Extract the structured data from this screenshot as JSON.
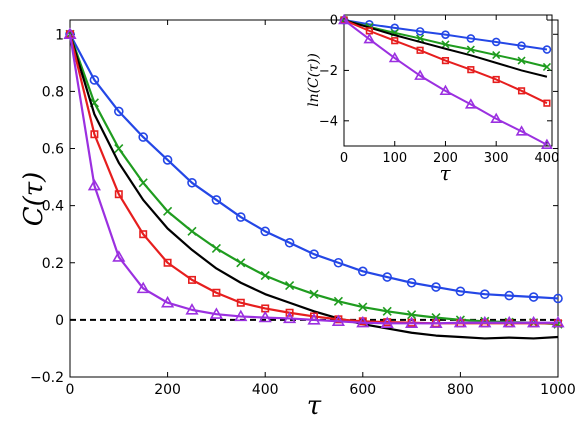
{
  "chart_data": [
    {
      "type": "line",
      "title": "",
      "xlabel": "τ",
      "ylabel": "C(τ)",
      "xlim": [
        0,
        1000
      ],
      "ylim": [
        -0.2,
        1.05
      ],
      "xticks": [
        0,
        200,
        400,
        600,
        800,
        1000
      ],
      "yticks": [
        -0.2,
        0,
        0.2,
        0.4,
        0.6,
        0.8,
        1
      ],
      "xtick_labels": [
        "0",
        "200",
        "400",
        "600",
        "800",
        "1000"
      ],
      "ytick_labels": [
        "−0.2",
        "0",
        "0.2",
        "0.4",
        "0.6",
        "0.8",
        "1"
      ],
      "reference_line": {
        "y": 0,
        "style": "dashed",
        "color": "#000000"
      },
      "series": [
        {
          "color": "#2447e6",
          "marker": "circle",
          "x": [
            0,
            50,
            100,
            150,
            200,
            250,
            300,
            350,
            400,
            450,
            500,
            550,
            600,
            650,
            700,
            750,
            800,
            850,
            900,
            950,
            1000
          ],
          "y": [
            1.0,
            0.84,
            0.73,
            0.64,
            0.56,
            0.48,
            0.42,
            0.36,
            0.31,
            0.27,
            0.23,
            0.2,
            0.17,
            0.15,
            0.13,
            0.115,
            0.1,
            0.09,
            0.085,
            0.08,
            0.075
          ]
        },
        {
          "color": "#1f9c1f",
          "marker": "x",
          "x": [
            0,
            50,
            100,
            150,
            200,
            250,
            300,
            350,
            400,
            450,
            500,
            550,
            600,
            650,
            700,
            750,
            800,
            850,
            900,
            950,
            1000
          ],
          "y": [
            1.0,
            0.76,
            0.6,
            0.48,
            0.38,
            0.31,
            0.25,
            0.2,
            0.155,
            0.12,
            0.09,
            0.065,
            0.045,
            0.03,
            0.018,
            0.008,
            0.0,
            -0.005,
            -0.008,
            -0.01,
            -0.015
          ]
        },
        {
          "color": "#000000",
          "marker": "none",
          "x": [
            0,
            50,
            100,
            150,
            200,
            250,
            300,
            350,
            400,
            450,
            500,
            550,
            600,
            650,
            700,
            750,
            800,
            850,
            900,
            950,
            1000
          ],
          "y": [
            1.0,
            0.72,
            0.55,
            0.42,
            0.32,
            0.245,
            0.18,
            0.13,
            0.09,
            0.06,
            0.03,
            0.005,
            -0.015,
            -0.03,
            -0.045,
            -0.055,
            -0.06,
            -0.065,
            -0.062,
            -0.065,
            -0.06
          ]
        },
        {
          "color": "#e61e1e",
          "marker": "square",
          "x": [
            0,
            50,
            100,
            150,
            200,
            250,
            300,
            350,
            400,
            450,
            500,
            550,
            600,
            650,
            700,
            750,
            800,
            850,
            900,
            950,
            1000
          ],
          "y": [
            1.0,
            0.65,
            0.44,
            0.3,
            0.2,
            0.14,
            0.095,
            0.06,
            0.04,
            0.025,
            0.012,
            0.002,
            -0.005,
            -0.008,
            -0.01,
            -0.012,
            -0.012,
            -0.012,
            -0.012,
            -0.012,
            -0.012
          ]
        },
        {
          "color": "#9b30e0",
          "marker": "triangle",
          "x": [
            0,
            50,
            100,
            150,
            200,
            250,
            300,
            350,
            400,
            450,
            500,
            550,
            600,
            650,
            700,
            750,
            800,
            850,
            900,
            950,
            1000
          ],
          "y": [
            1.0,
            0.47,
            0.22,
            0.11,
            0.06,
            0.035,
            0.02,
            0.012,
            0.008,
            0.005,
            0.0,
            -0.005,
            -0.01,
            -0.012,
            -0.012,
            -0.012,
            -0.01,
            -0.01,
            -0.01,
            -0.01,
            -0.01
          ]
        }
      ]
    },
    {
      "type": "line",
      "title": "",
      "xlabel": "τ",
      "ylabel": "ln(C(τ))",
      "xlim": [
        0,
        410
      ],
      "ylim": [
        -5,
        0.2
      ],
      "xticks": [
        0,
        100,
        200,
        300,
        400
      ],
      "yticks": [
        -4,
        -2,
        0
      ],
      "xtick_labels": [
        "0",
        "100",
        "200",
        "300",
        "400"
      ],
      "ytick_labels": [
        "−4",
        "−2",
        "0"
      ],
      "series": [
        {
          "color": "#2447e6",
          "marker": "circle",
          "x": [
            0,
            50,
            100,
            150,
            200,
            250,
            300,
            350,
            400
          ],
          "y": [
            0,
            -0.17,
            -0.31,
            -0.45,
            -0.58,
            -0.73,
            -0.87,
            -1.02,
            -1.17
          ]
        },
        {
          "color": "#1f9c1f",
          "marker": "x",
          "x": [
            0,
            50,
            100,
            150,
            200,
            250,
            300,
            350,
            400
          ],
          "y": [
            0,
            -0.27,
            -0.51,
            -0.73,
            -0.97,
            -1.17,
            -1.39,
            -1.61,
            -1.86
          ]
        },
        {
          "color": "#000000",
          "marker": "none",
          "x": [
            0,
            50,
            100,
            150,
            200,
            250,
            300,
            350,
            400
          ],
          "y": [
            0,
            -0.3,
            -0.6,
            -0.87,
            -1.14,
            -1.4,
            -1.7,
            -2.0,
            -2.25
          ]
        },
        {
          "color": "#e61e1e",
          "marker": "square",
          "x": [
            0,
            50,
            100,
            150,
            200,
            250,
            300,
            350,
            400
          ],
          "y": [
            0,
            -0.43,
            -0.82,
            -1.2,
            -1.61,
            -1.97,
            -2.36,
            -2.81,
            -3.3
          ]
        },
        {
          "color": "#9b30e0",
          "marker": "triangle",
          "x": [
            0,
            50,
            100,
            150,
            200,
            250,
            300,
            350,
            400
          ],
          "y": [
            0,
            -0.76,
            -1.51,
            -2.21,
            -2.81,
            -3.35,
            -3.92,
            -4.42,
            -4.95
          ]
        }
      ]
    }
  ]
}
